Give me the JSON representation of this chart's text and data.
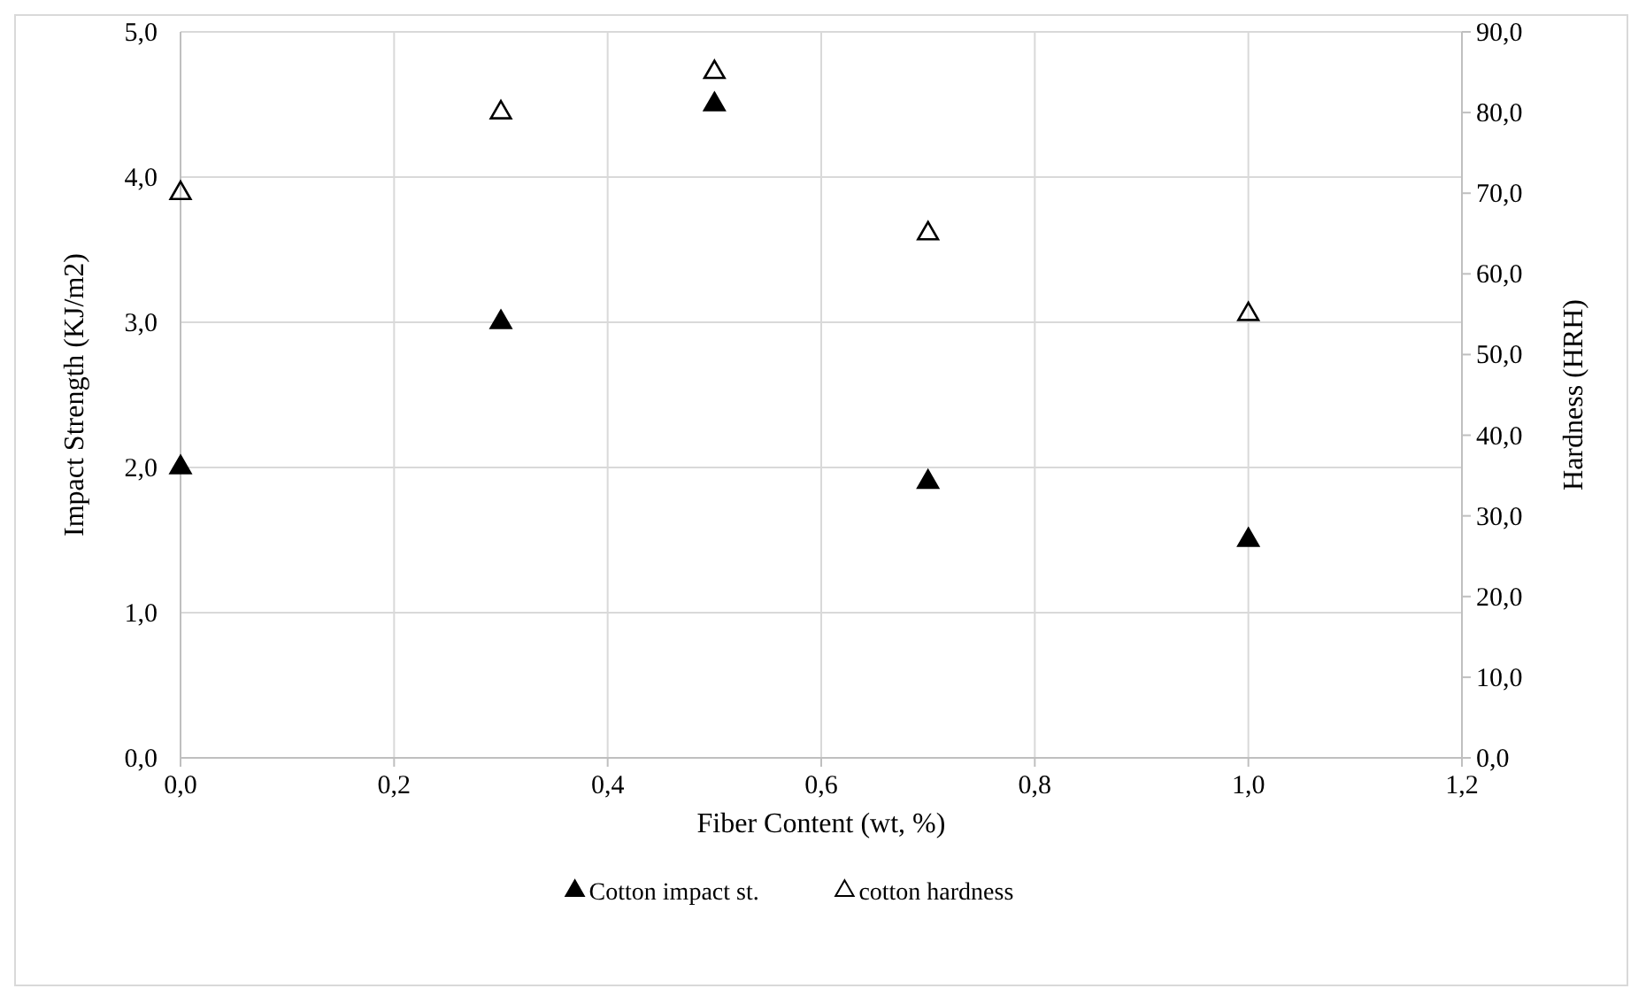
{
  "chart_data": {
    "type": "scatter",
    "xlabel": "Fiber Content (wt, %)",
    "ylabel": "Impact Strength (KJ/m2)",
    "y2label": "Hardness (HRH)",
    "xlim": [
      0,
      1.2
    ],
    "xticks": [
      {
        "value": 0,
        "label": "0,0"
      },
      {
        "value": 0.2,
        "label": "0,2"
      },
      {
        "value": 0.4,
        "label": "0,4"
      },
      {
        "value": 0.6,
        "label": "0,6"
      },
      {
        "value": 0.8,
        "label": "0,8"
      },
      {
        "value": 1,
        "label": "1,0"
      },
      {
        "value": 1.2,
        "label": "1,2"
      }
    ],
    "ylim": [
      0,
      5
    ],
    "yticks": [
      {
        "value": 0,
        "label": "0,0"
      },
      {
        "value": 1,
        "label": "1,0"
      },
      {
        "value": 2,
        "label": "2,0"
      },
      {
        "value": 3,
        "label": "3,0"
      },
      {
        "value": 4,
        "label": "4,0"
      },
      {
        "value": 5,
        "label": "5,0"
      }
    ],
    "y2lim": [
      0,
      90
    ],
    "y2ticks": [
      {
        "value": 0,
        "label": "0,0"
      },
      {
        "value": 10,
        "label": "10,0"
      },
      {
        "value": 20,
        "label": "20,0"
      },
      {
        "value": 30,
        "label": "30,0"
      },
      {
        "value": 40,
        "label": "40,0"
      },
      {
        "value": 50,
        "label": "50,0"
      },
      {
        "value": 60,
        "label": "60,0"
      },
      {
        "value": 70,
        "label": "70,0"
      },
      {
        "value": 80,
        "label": "80,0"
      },
      {
        "value": 90,
        "label": "90,0"
      }
    ],
    "x": [
      0,
      0.3,
      0.5,
      0.7,
      1.0
    ],
    "series": [
      {
        "name": "Cotton impact st.",
        "color": "#000000",
        "values": [
          2.0,
          3.0,
          4.5,
          1.9,
          1.5
        ]
      },
      {
        "name": "cotton hardness",
        "color": "#000000",
        "axis": "y2",
        "values": [
          70,
          80,
          85,
          65,
          55
        ]
      }
    ],
    "grid": true,
    "legend": "bottom",
    "marker": "triangle"
  }
}
